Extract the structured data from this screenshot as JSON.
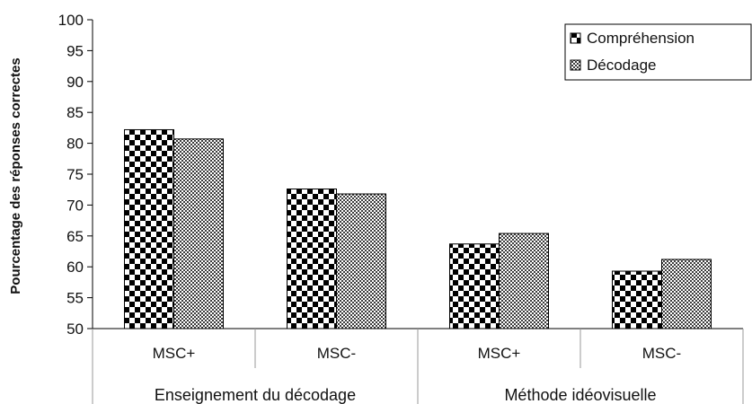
{
  "chart_data": {
    "type": "bar",
    "ylabel": "Pourcentage des réponses correctes",
    "ylim": [
      50,
      100
    ],
    "yticks": [
      50,
      55,
      60,
      65,
      70,
      75,
      80,
      85,
      90,
      95,
      100
    ],
    "categories": [
      "MSC+",
      "MSC-",
      "MSC+",
      "MSC-"
    ],
    "groups": [
      {
        "label": "Enseignement du décodage",
        "categories": [
          "MSC+",
          "MSC-"
        ]
      },
      {
        "label": "Méthode idéovisuelle",
        "categories": [
          "MSC+",
          "MSC-"
        ]
      }
    ],
    "series": [
      {
        "name": "Compréhension",
        "values": [
          82.2,
          72.6,
          63.7,
          59.3
        ],
        "pattern": "checkerboard"
      },
      {
        "name": "Décodage",
        "values": [
          80.7,
          71.8,
          65.4,
          61.2
        ],
        "pattern": "fine-crosshatch"
      }
    ],
    "legend_position": "top-right",
    "grid": false
  }
}
